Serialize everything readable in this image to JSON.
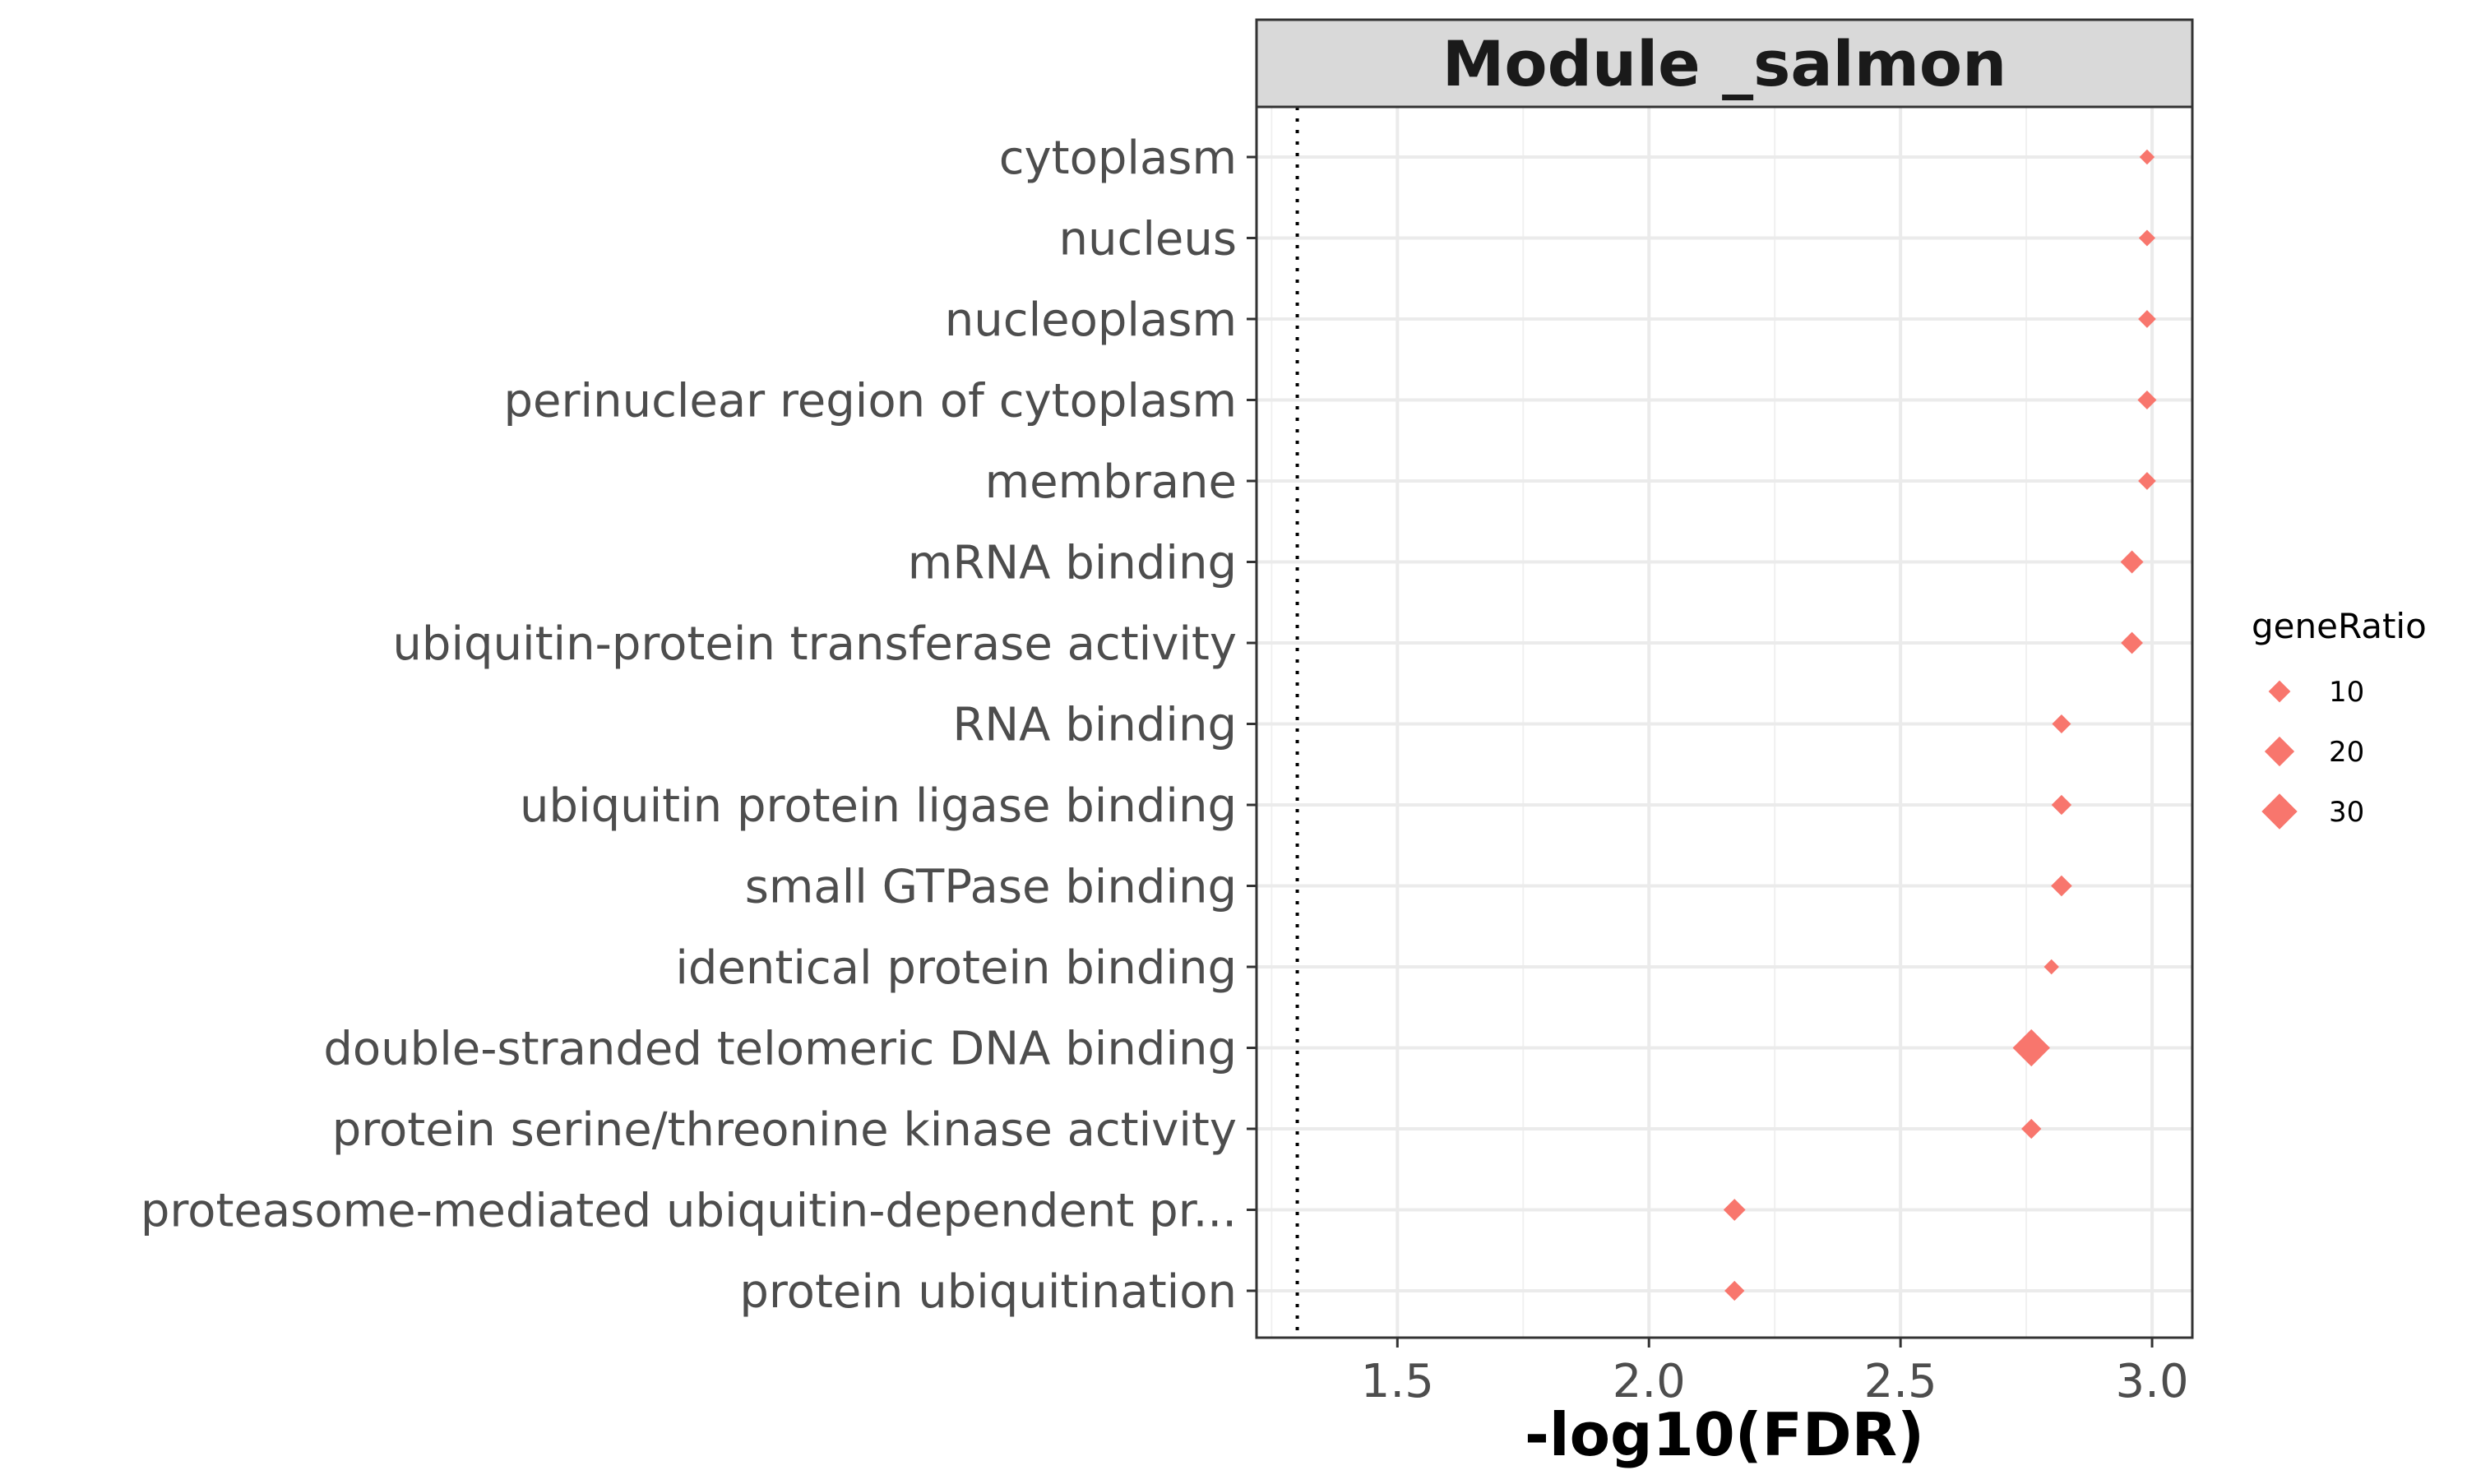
{
  "chart_data": {
    "type": "scatter",
    "title": "Module _salmon",
    "xlabel": "-log10(FDR)",
    "ylabel": "",
    "xlim": [
      1.22,
      3.08
    ],
    "xticks": [
      1.5,
      2.0,
      2.5,
      3.0
    ],
    "xtick_labels": [
      "1.5",
      "2.0",
      "2.5",
      "3.0"
    ],
    "reference_line_x": 1.301,
    "grid": true,
    "marker": "diamond",
    "color": "#F8766D",
    "categories": [
      "cytoplasm",
      "nucleus",
      "nucleoplasm",
      "perinuclear region of cytoplasm",
      "membrane",
      "mRNA binding",
      "ubiquitin-protein transferase activity",
      "RNA binding",
      "ubiquitin protein ligase binding",
      "small GTPase binding",
      "identical protein binding",
      "double-stranded telomeric DNA binding",
      "protein serine/threonine kinase activity",
      "proteasome-mediated ubiquitin-dependent pr...",
      "protein ubiquitination"
    ],
    "x": [
      2.99,
      2.99,
      2.99,
      2.99,
      2.99,
      2.96,
      2.96,
      2.82,
      2.82,
      2.82,
      2.8,
      2.76,
      2.76,
      2.17,
      2.17
    ],
    "gene_ratio": [
      4,
      5,
      6,
      7,
      6,
      11,
      10,
      7,
      8,
      9,
      4,
      33,
      8,
      10,
      8
    ],
    "legend": {
      "title": "geneRatio",
      "position": "right",
      "entries": [
        {
          "label": "10",
          "value": 10
        },
        {
          "label": "20",
          "value": 20
        },
        {
          "label": "30",
          "value": 30
        }
      ]
    }
  }
}
